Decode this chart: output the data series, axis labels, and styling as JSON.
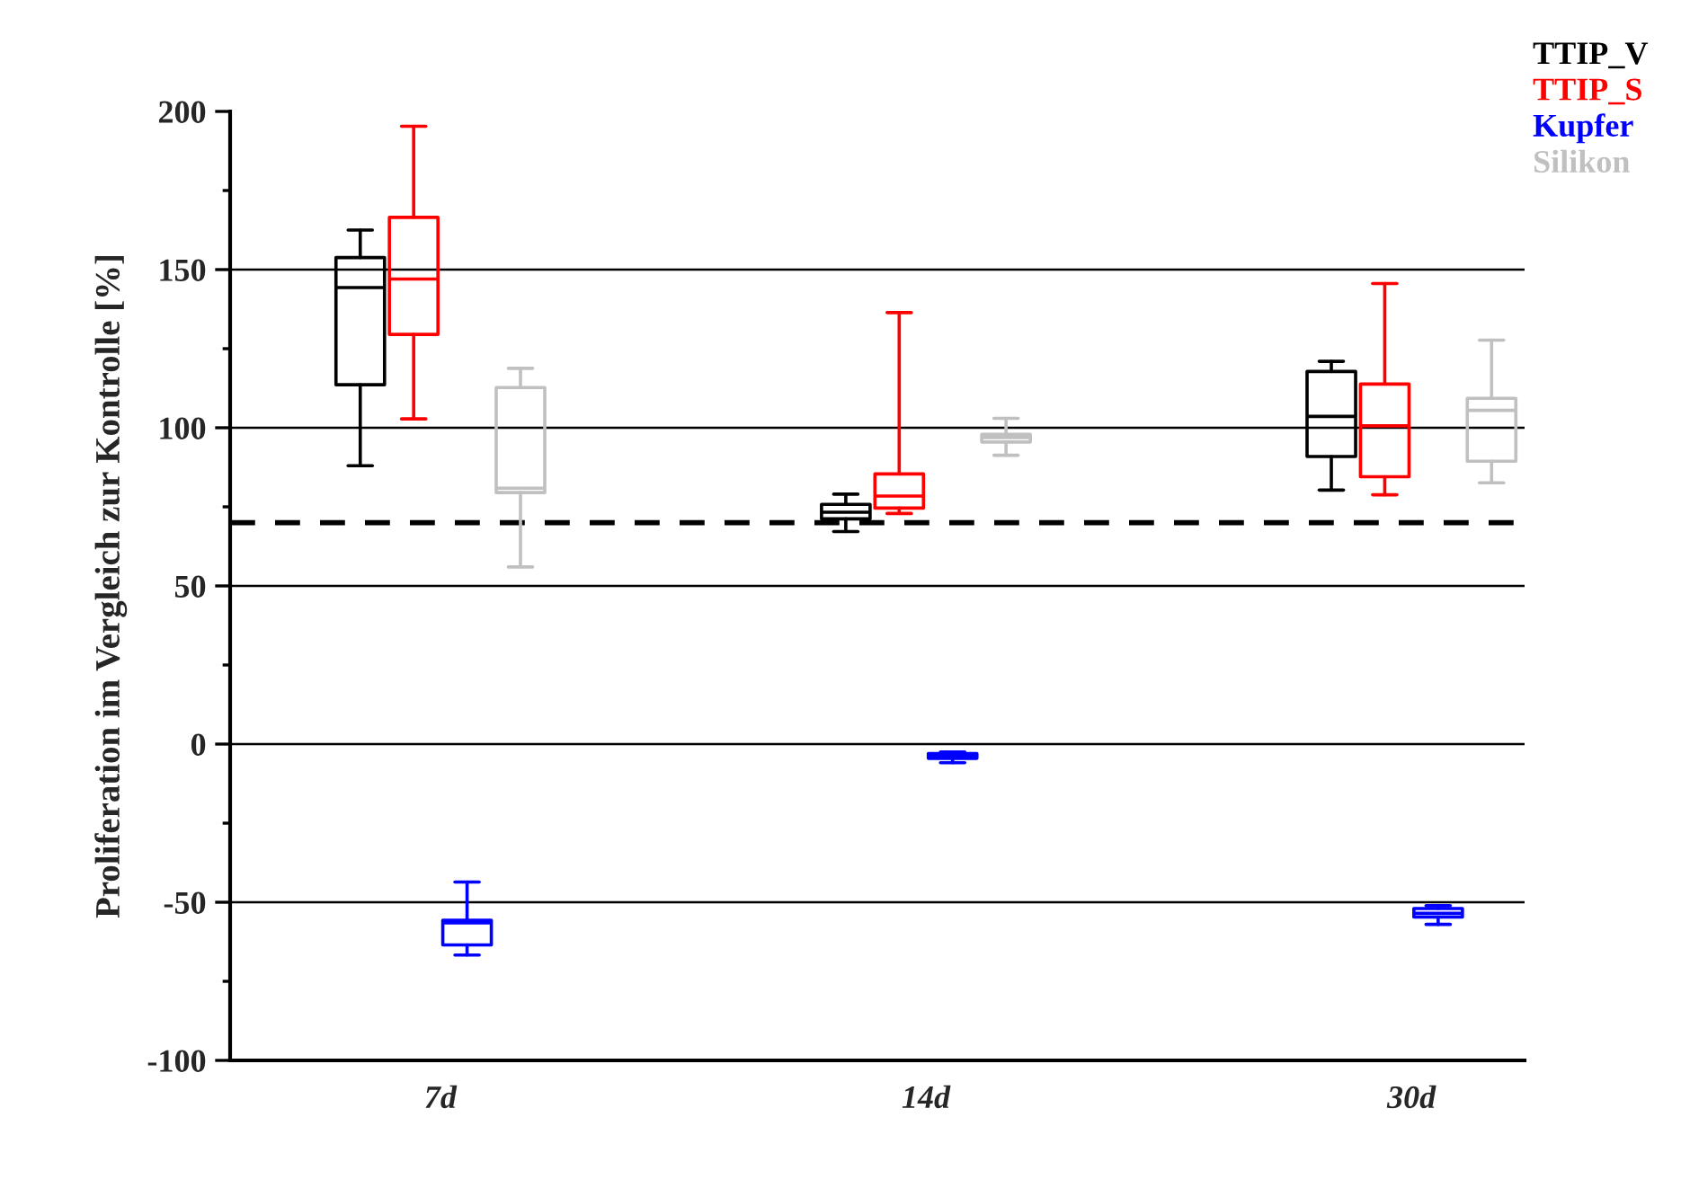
{
  "chart_data": {
    "type": "box",
    "ylabel": "Proliferation im Vergleich zur Kontrolle [%]",
    "categories": [
      "7d",
      "14d",
      "30d"
    ],
    "ylim": [
      -100,
      200
    ],
    "yticks": [
      -100,
      {
        "value": -75,
        "label": null
      },
      -50,
      {
        "value": -25,
        "label": null
      },
      0,
      {
        "value": 25,
        "label": null
      },
      50,
      {
        "value": 75,
        "label": null
      },
      100,
      {
        "value": 125,
        "label": null
      },
      150,
      {
        "value": 175,
        "label": null
      },
      200
    ],
    "grid": "y",
    "legend": "top right",
    "ref_lines": [
      {
        "axis": "y",
        "value": 70,
        "color": "#000000",
        "line_style": "dashed"
      }
    ],
    "series": [
      {
        "name": "TTIP_V",
        "color": "#000000",
        "boxes": [
          {
            "low": 88,
            "q1": 113.6,
            "median": 144.3,
            "q3": 153.8,
            "high": 162.5
          },
          {
            "low": 67.2,
            "q1": 71.2,
            "median": 73.3,
            "q3": 75.8,
            "high": 79
          },
          {
            "low": 80.3,
            "q1": 90.9,
            "median": 103.6,
            "q3": 117.8,
            "high": 121
          }
        ]
      },
      {
        "name": "TTIP_S",
        "color": "#ff0000",
        "boxes": [
          {
            "low": 102.8,
            "q1": 129.5,
            "median": 147,
            "q3": 166.5,
            "high": 195.3
          },
          {
            "low": 72.9,
            "q1": 74.6,
            "median": 78.4,
            "q3": 85.4,
            "high": 136.4
          },
          {
            "low": 78.8,
            "q1": 84.5,
            "median": 100.6,
            "q3": 113.8,
            "high": 145.6
          }
        ]
      },
      {
        "name": "Kupfer",
        "color": "#0000ff",
        "boxes": [
          {
            "low": -66.7,
            "q1": -63.5,
            "median": -56.5,
            "q3": -55.7,
            "high": -43.6
          },
          {
            "low": -5.9,
            "q1": -4.5,
            "median": -3.7,
            "q3": -3,
            "high": -2.5
          },
          {
            "low": -57,
            "q1": -54.7,
            "median": -53.5,
            "q3": -52,
            "high": -51.1
          }
        ]
      },
      {
        "name": "Silikon",
        "color": "#c0c0c0",
        "boxes": [
          {
            "low": 56,
            "q1": 79.5,
            "median": 80.9,
            "q3": 112.7,
            "high": 118.8
          },
          {
            "low": 91.3,
            "q1": 95.5,
            "median": 96.9,
            "q3": 97.9,
            "high": 103
          },
          {
            "low": 82.6,
            "q1": 89.4,
            "median": 105.5,
            "q3": 109.3,
            "high": 127.7
          }
        ]
      }
    ]
  }
}
